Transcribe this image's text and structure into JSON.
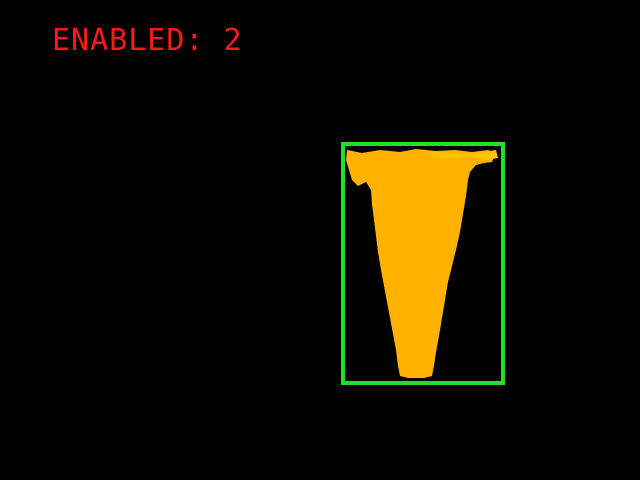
{
  "overlay": {
    "status_text": "ENABLED: 2",
    "status_color": "#ff1a1a"
  },
  "detection": {
    "box_color": "#22e022",
    "mask_color": "#ffb300",
    "mask_highlight": "#ffc400"
  },
  "background_color": "#000000"
}
